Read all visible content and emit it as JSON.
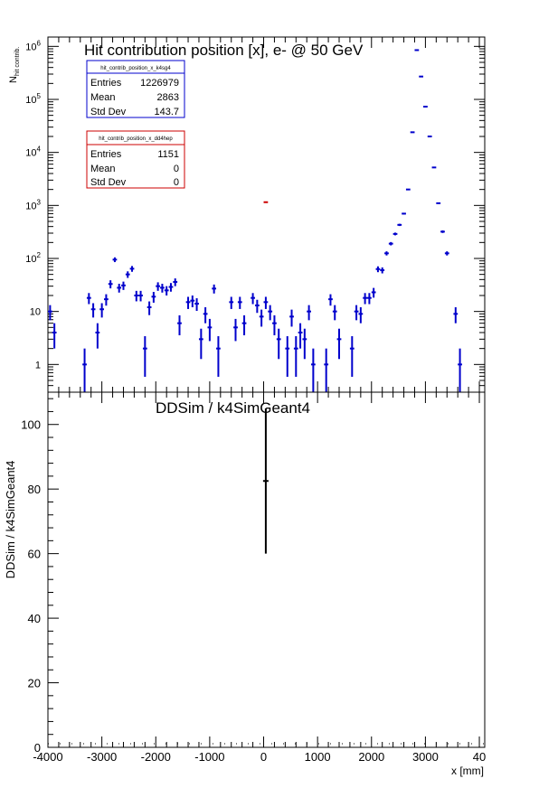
{
  "colors": {
    "k4sg4": "#0000cc",
    "dd4hep": "#cc0000",
    "axis": "#000000"
  },
  "chart_data": [
    {
      "type": "scatter",
      "title": "Hit contribution position [x],  e- @ 50 GeV",
      "ylabel_main": "N",
      "ylabel_sub": "hit contrib.",
      "yscale": "log",
      "ylim": [
        0.3,
        1500000
      ],
      "xlim": [
        -4000,
        4100
      ],
      "yticks": [
        {
          "label": "1",
          "value": 1
        },
        {
          "base": "10",
          "label": "10",
          "value": 10
        },
        {
          "base": "10",
          "exp": "2",
          "value": 100
        },
        {
          "base": "10",
          "exp": "3",
          "value": 1000
        },
        {
          "base": "10",
          "exp": "4",
          "value": 10000
        },
        {
          "base": "10",
          "exp": "5",
          "value": 100000
        },
        {
          "base": "10",
          "exp": "6",
          "value": 1000000
        }
      ],
      "stats_boxes": [
        {
          "name": "hit_contrib_position_x_k4sg4",
          "color": "#0000cc",
          "rows": [
            {
              "label": "Entries",
              "value": "1226979"
            },
            {
              "label": "Mean",
              "value": "2863"
            },
            {
              "label": "Std Dev",
              "value": "143.7"
            }
          ]
        },
        {
          "name": "hit_contrib_position_x_dd4hep",
          "color": "#cc0000",
          "rows": [
            {
              "label": "Entries",
              "value": "1151"
            },
            {
              "label": "Mean",
              "value": "0"
            },
            {
              "label": "Std Dev",
              "value": "0"
            }
          ]
        }
      ],
      "series": [
        {
          "name": "hit_contrib_position_x_k4sg4",
          "color": "#0000cc",
          "points": [
            {
              "x": -3960,
              "y": 10
            },
            {
              "x": -3880,
              "y": 4
            },
            {
              "x": -3320,
              "y": 1
            },
            {
              "x": -3240,
              "y": 18
            },
            {
              "x": -3160,
              "y": 11
            },
            {
              "x": -3080,
              "y": 4
            },
            {
              "x": -3000,
              "y": 11
            },
            {
              "x": -2920,
              "y": 17
            },
            {
              "x": -2840,
              "y": 33
            },
            {
              "x": -2760,
              "y": 95
            },
            {
              "x": -2680,
              "y": 28
            },
            {
              "x": -2600,
              "y": 31
            },
            {
              "x": -2520,
              "y": 50
            },
            {
              "x": -2440,
              "y": 64
            },
            {
              "x": -2360,
              "y": 20
            },
            {
              "x": -2280,
              "y": 20
            },
            {
              "x": -2200,
              "y": 2
            },
            {
              "x": -2120,
              "y": 12
            },
            {
              "x": -2040,
              "y": 19
            },
            {
              "x": -1960,
              "y": 30
            },
            {
              "x": -1880,
              "y": 28
            },
            {
              "x": -1800,
              "y": 25
            },
            {
              "x": -1720,
              "y": 29
            },
            {
              "x": -1640,
              "y": 36
            },
            {
              "x": -1560,
              "y": 6
            },
            {
              "x": -1400,
              "y": 15
            },
            {
              "x": -1320,
              "y": 16
            },
            {
              "x": -1240,
              "y": 14
            },
            {
              "x": -1160,
              "y": 3
            },
            {
              "x": -1080,
              "y": 9
            },
            {
              "x": -1000,
              "y": 5
            },
            {
              "x": -920,
              "y": 27
            },
            {
              "x": -840,
              "y": 2
            },
            {
              "x": -600,
              "y": 15
            },
            {
              "x": -520,
              "y": 5
            },
            {
              "x": -440,
              "y": 15
            },
            {
              "x": -360,
              "y": 6
            },
            {
              "x": -200,
              "y": 18
            },
            {
              "x": -120,
              "y": 13
            },
            {
              "x": -40,
              "y": 8
            },
            {
              "x": 40,
              "y": 15
            },
            {
              "x": 120,
              "y": 10
            },
            {
              "x": 200,
              "y": 6
            },
            {
              "x": 280,
              "y": 3
            },
            {
              "x": 440,
              "y": 2
            },
            {
              "x": 520,
              "y": 8
            },
            {
              "x": 600,
              "y": 2
            },
            {
              "x": 680,
              "y": 4
            },
            {
              "x": 760,
              "y": 3
            },
            {
              "x": 840,
              "y": 10
            },
            {
              "x": 920,
              "y": 1
            },
            {
              "x": 1160,
              "y": 1
            },
            {
              "x": 1240,
              "y": 17
            },
            {
              "x": 1320,
              "y": 10
            },
            {
              "x": 1400,
              "y": 3
            },
            {
              "x": 1640,
              "y": 2
            },
            {
              "x": 1720,
              "y": 10
            },
            {
              "x": 1800,
              "y": 9
            },
            {
              "x": 1880,
              "y": 18
            },
            {
              "x": 1960,
              "y": 18
            },
            {
              "x": 2040,
              "y": 23
            },
            {
              "x": 2120,
              "y": 63
            },
            {
              "x": 2200,
              "y": 60
            },
            {
              "x": 2280,
              "y": 125
            },
            {
              "x": 2360,
              "y": 190
            },
            {
              "x": 2440,
              "y": 290
            },
            {
              "x": 2520,
              "y": 430
            },
            {
              "x": 2600,
              "y": 700
            },
            {
              "x": 2680,
              "y": 2000
            },
            {
              "x": 2760,
              "y": 24000
            },
            {
              "x": 2840,
              "y": 850000
            },
            {
              "x": 2920,
              "y": 270000
            },
            {
              "x": 3000,
              "y": 73000
            },
            {
              "x": 3080,
              "y": 20000
            },
            {
              "x": 3160,
              "y": 5200
            },
            {
              "x": 3240,
              "y": 1100
            },
            {
              "x": 3320,
              "y": 320
            },
            {
              "x": 3400,
              "y": 125
            },
            {
              "x": 3560,
              "y": 9
            },
            {
              "x": 3640,
              "y": 1
            }
          ]
        },
        {
          "name": "hit_contrib_position_x_dd4hep",
          "color": "#cc0000",
          "points": [
            {
              "x": 40,
              "y": 1151
            }
          ]
        }
      ]
    },
    {
      "type": "scatter",
      "title": "DDSim / k4SimGeant4",
      "xlabel": "x [mm]",
      "ylabel": "DDSim / k4SimGeant4",
      "xlim": [
        -4000,
        4100
      ],
      "ylim": [
        0,
        110
      ],
      "xticks": [
        "-4000",
        "-3000",
        "-2000",
        "-1000",
        "0",
        "1000",
        "2000",
        "3000",
        "40"
      ],
      "yticks": [
        "0",
        "20",
        "40",
        "60",
        "80",
        "100"
      ],
      "series": [
        {
          "name": "ratio",
          "color": "#000000",
          "points": [
            {
              "x": 40,
              "y": 82.5,
              "err": 22.5
            }
          ]
        }
      ]
    }
  ]
}
